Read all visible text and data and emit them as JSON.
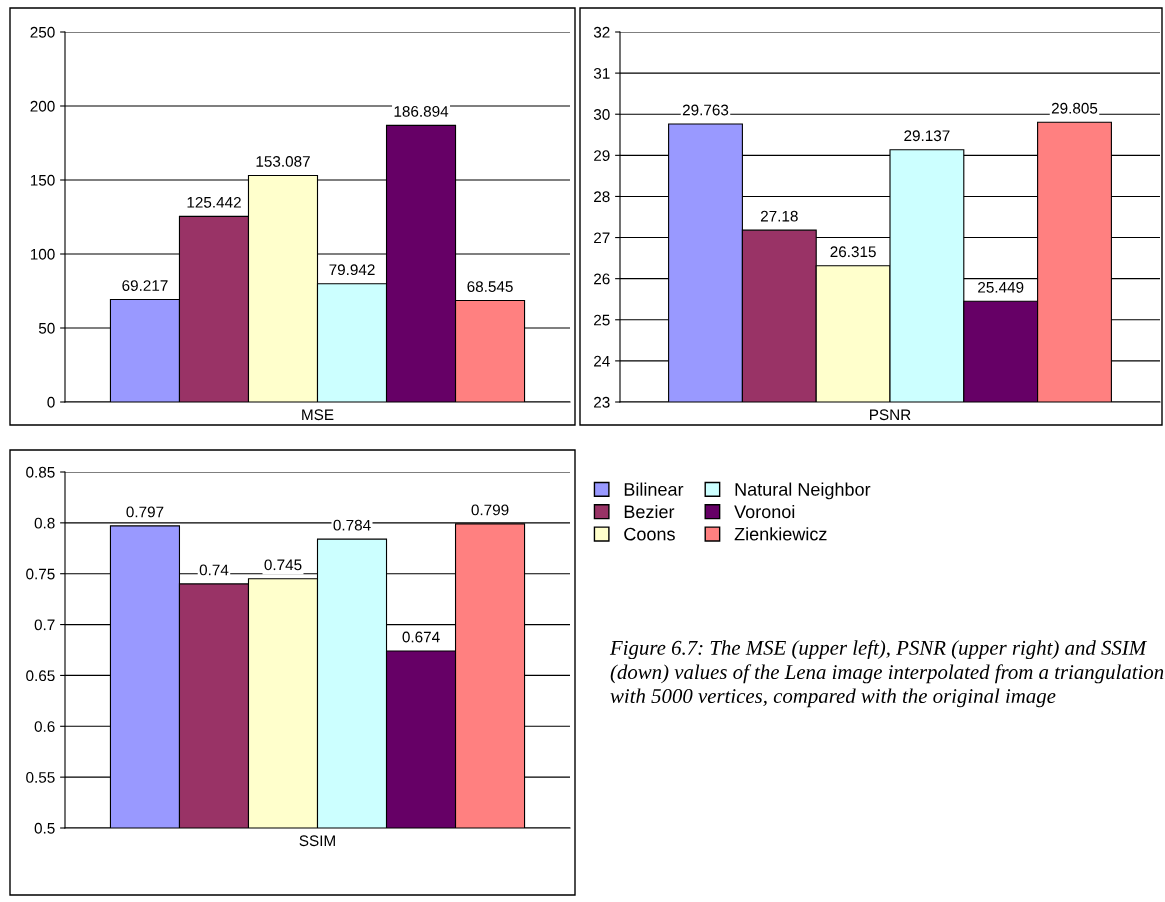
{
  "chart_data": [
    {
      "type": "bar",
      "categories": [
        "MSE"
      ],
      "ylim": [
        0,
        250
      ],
      "yticks": [
        0,
        50,
        100,
        150,
        200,
        250
      ],
      "grid": "y",
      "data_labels": true,
      "legend": false,
      "series": [
        {
          "color": "#9999ff",
          "values": [
            69.217
          ]
        },
        {
          "color": "#993366",
          "values": [
            125.442
          ]
        },
        {
          "color": "#ffffcc",
          "values": [
            153.087
          ]
        },
        {
          "color": "#ccffff",
          "values": [
            79.942
          ]
        },
        {
          "color": "#660066",
          "values": [
            186.894
          ]
        },
        {
          "color": "#ff8080",
          "values": [
            68.545
          ]
        }
      ]
    },
    {
      "type": "bar",
      "categories": [
        "PSNR"
      ],
      "ylim": [
        23,
        32
      ],
      "yticks": [
        23,
        24,
        25,
        26,
        27,
        28,
        29,
        30,
        31,
        32
      ],
      "grid": "y",
      "data_labels": true,
      "legend": false,
      "series": [
        {
          "color": "#9999ff",
          "values": [
            29.763
          ]
        },
        {
          "color": "#993366",
          "values": [
            27.18
          ]
        },
        {
          "color": "#ffffcc",
          "values": [
            26.315
          ]
        },
        {
          "color": "#ccffff",
          "values": [
            29.137
          ]
        },
        {
          "color": "#660066",
          "values": [
            25.449
          ]
        },
        {
          "color": "#ff8080",
          "values": [
            29.805
          ]
        }
      ]
    },
    {
      "type": "bar",
      "categories": [
        "SSIM"
      ],
      "ylim": [
        0.5,
        0.85
      ],
      "yticks": [
        0.5,
        0.55,
        0.6,
        0.65,
        0.7,
        0.75,
        0.8,
        0.85
      ],
      "grid": "y",
      "data_labels": true,
      "legend": "right",
      "annotations": [
        "Figure 6.7: The MSE (upper left), PSNR (upper right) and SSIM (down) values of the Lena image interpolated from a triangulation with 5000 vertices, compared with the original image"
      ],
      "series": [
        {
          "name": "Bilinear",
          "color": "#9999ff",
          "values": [
            0.797
          ]
        },
        {
          "name": "Bezier",
          "color": "#993366",
          "values": [
            0.74
          ]
        },
        {
          "name": "Coons",
          "color": "#ffffcc",
          "values": [
            0.745
          ]
        },
        {
          "name": "Natural Neighbor",
          "color": "#ccffff",
          "values": [
            0.784
          ]
        },
        {
          "name": "Voronoi",
          "color": "#660066",
          "values": [
            0.674
          ]
        },
        {
          "name": "Zienkiewicz",
          "color": "#ff8080",
          "values": [
            0.799
          ]
        }
      ]
    }
  ]
}
